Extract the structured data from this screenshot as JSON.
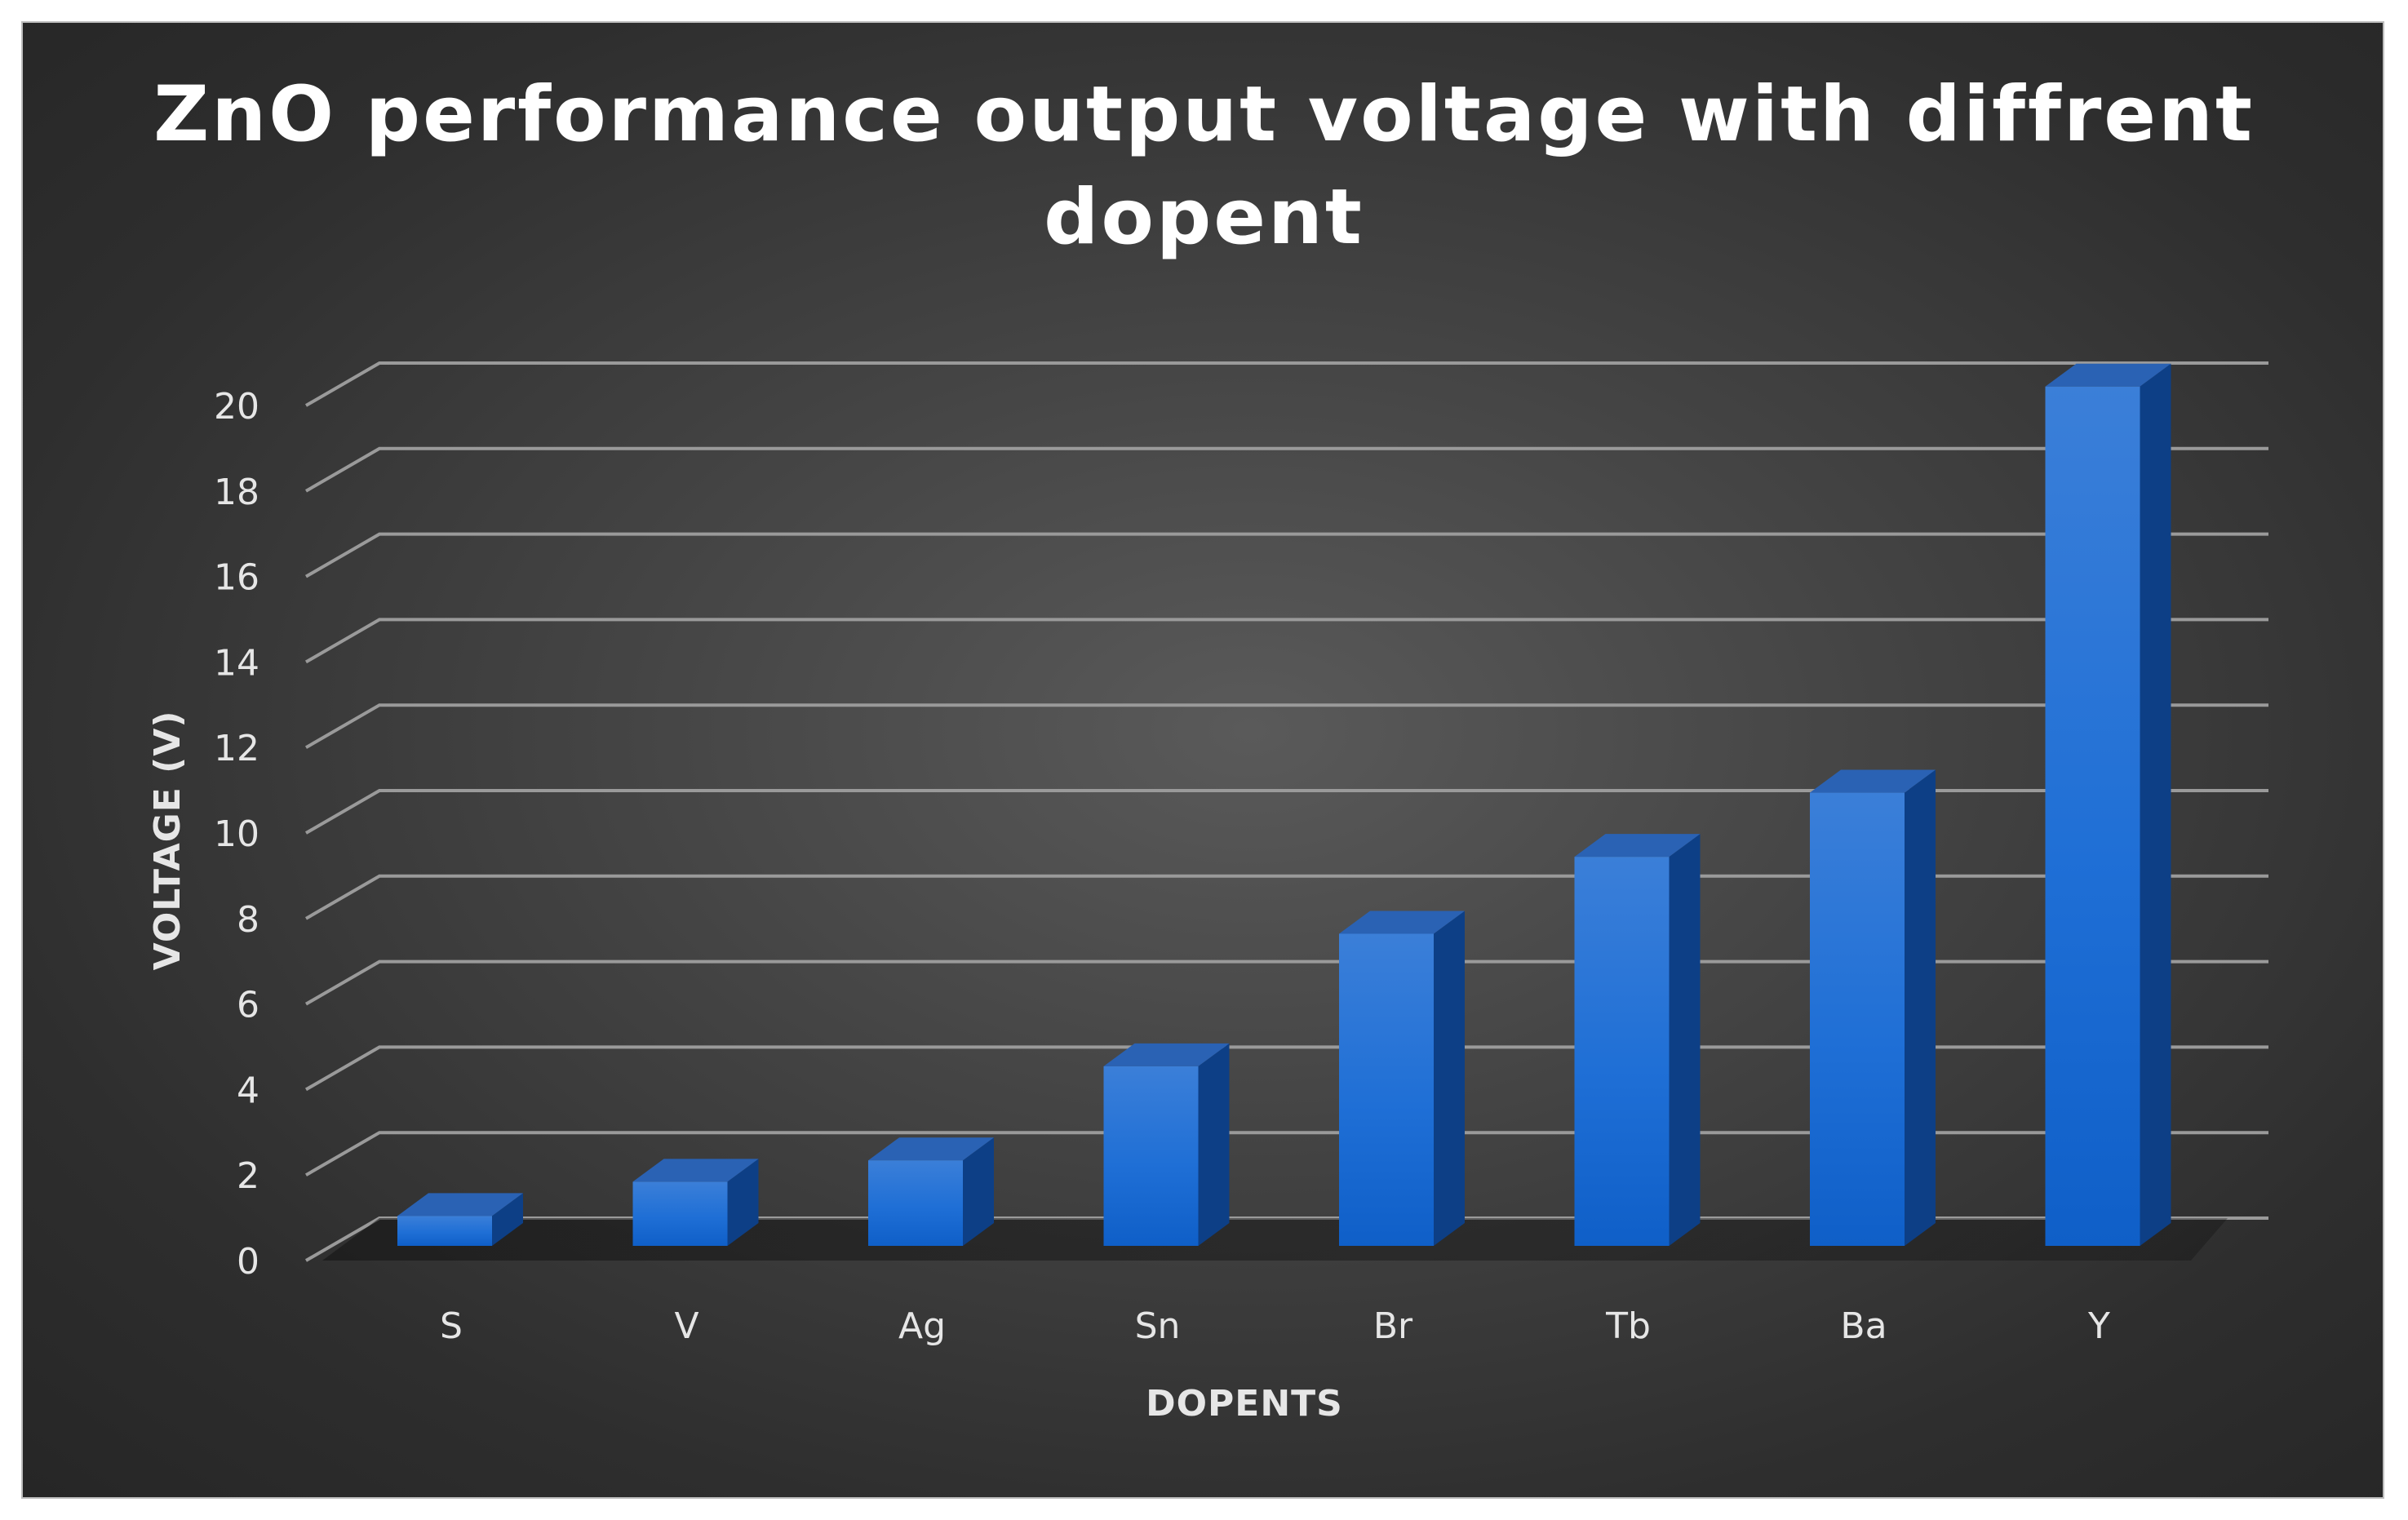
{
  "chart_data": {
    "type": "bar",
    "title_lines": [
      "ZnO performance output voltage with diffrent",
      "dopent"
    ],
    "xlabel": "DOPENTS",
    "ylabel": "VOLTAGE (V)",
    "categories": [
      "S",
      "V",
      "Ag",
      "Sn",
      "Br",
      "Tb",
      "Ba",
      "Y"
    ],
    "values": [
      0.7,
      1.5,
      2.0,
      4.2,
      7.3,
      9.1,
      10.6,
      20.1
    ],
    "ylim": [
      0,
      20
    ],
    "yticks": [
      0,
      2,
      4,
      6,
      8,
      10,
      12,
      14,
      16,
      18,
      20
    ],
    "grid": true,
    "legend": "none",
    "style": "3d-column",
    "colors": {
      "bar": "#1f6fd6",
      "bar_side": "#0d3f86",
      "bar_top": "#2a62b4",
      "background": "#3c3c3c",
      "grid": "#9a9a9a",
      "text": "#e6e6e6"
    }
  }
}
